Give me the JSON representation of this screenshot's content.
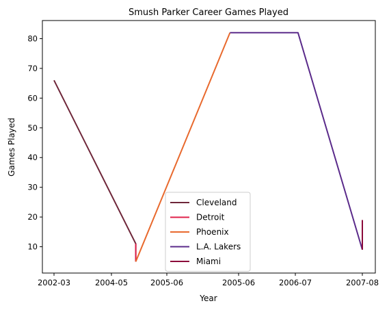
{
  "chart_data": {
    "type": "line",
    "title": "Smush Parker Career Games Played",
    "xlabel": "Year",
    "ylabel": "Games Played",
    "x_ticks": [
      "2002-03",
      "2004-05",
      "2005-06",
      "2005-06",
      "2006-07",
      "2007-08"
    ],
    "ylim": [
      1.15,
      86.1
    ],
    "y_ticks": [
      10,
      20,
      30,
      40,
      50,
      60,
      70,
      80
    ],
    "grid": false,
    "legend_position": "lower-center",
    "series": [
      {
        "name": "Cleveland",
        "color": "#6e2639",
        "points": [
          {
            "x": 0,
            "y": 66
          },
          {
            "x": 1.44,
            "y": 11
          },
          {
            "x": 1.44,
            "y": 5
          }
        ]
      },
      {
        "name": "Detroit",
        "color": "#e0214a",
        "points": [
          {
            "x": 1.44,
            "y": 11
          },
          {
            "x": 1.44,
            "y": 5
          }
        ]
      },
      {
        "name": "Phoenix",
        "color": "#e8692d",
        "points": [
          {
            "x": 1.44,
            "y": 5
          },
          {
            "x": 2.88,
            "y": 82
          }
        ]
      },
      {
        "name": "L.A. Lakers",
        "color": "#5a2a8a",
        "points": [
          {
            "x": 2.88,
            "y": 82
          },
          {
            "x": 4.04,
            "y": 82
          },
          {
            "x": 5.0,
            "y": 9
          }
        ]
      },
      {
        "name": "Miami",
        "color": "#8b0a3a",
        "points": [
          {
            "x": 5.0,
            "y": 9
          },
          {
            "x": 5.0,
            "y": 19
          }
        ]
      }
    ]
  }
}
